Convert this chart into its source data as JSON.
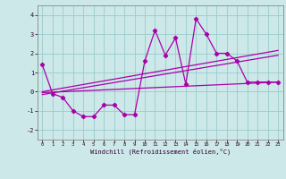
{
  "xlabel": "Windchill (Refroidissement éolien,°C)",
  "background_color": "#cce8e8",
  "grid_color": "#99cccc",
  "line_color": "#aa00aa",
  "xlim": [
    -0.5,
    23.5
  ],
  "ylim": [
    -2.5,
    4.5
  ],
  "yticks": [
    -2,
    -1,
    0,
    1,
    2,
    3,
    4
  ],
  "xticks": [
    0,
    1,
    2,
    3,
    4,
    5,
    6,
    7,
    8,
    9,
    10,
    11,
    12,
    13,
    14,
    15,
    16,
    17,
    18,
    19,
    20,
    21,
    22,
    23
  ],
  "scatter_x": [
    0,
    1,
    2,
    3,
    4,
    5,
    6,
    7,
    8,
    9,
    10,
    11,
    12,
    13,
    14,
    15,
    16,
    17,
    18,
    19,
    20,
    21,
    22,
    23
  ],
  "scatter_y": [
    1.4,
    -0.1,
    -0.3,
    -1.0,
    -1.3,
    -1.3,
    -0.7,
    -0.7,
    -1.2,
    -1.2,
    1.6,
    3.2,
    1.9,
    2.8,
    0.4,
    3.8,
    3.0,
    2.0,
    2.0,
    1.6,
    0.5,
    0.5,
    0.5,
    0.5
  ],
  "line1_x": [
    0,
    23
  ],
  "line1_y": [
    -0.05,
    0.5
  ],
  "line2_x": [
    0,
    23
  ],
  "line2_y": [
    -0.15,
    1.9
  ],
  "line3_x": [
    0,
    23
  ],
  "line3_y": [
    0.0,
    2.15
  ]
}
